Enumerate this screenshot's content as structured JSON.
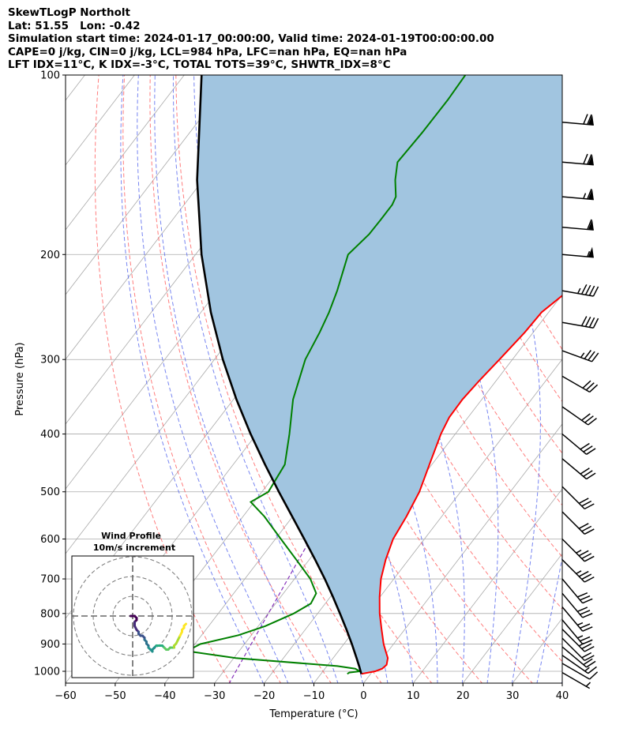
{
  "header": {
    "lines": [
      "SkewTLogP Northolt",
      "Lat: 51.55   Lon: -0.42",
      "Simulation start time: 2024-01-17_00:00:00, Valid time: 2024-01-19T00:00:00.00",
      "CAPE=0 j/kg, CIN=0 j/kg, LCL=984 hPa, LFC=nan hPa, EQ=nan hPa",
      "LFT IDX=11°C, K IDX=-3°C, TOTAL TOTS=39°C, SHWTR_IDX=8°C"
    ]
  },
  "colors": {
    "temperature": "#ff0000",
    "dewpoint": "#008000",
    "parcel": "#000000",
    "fill": "#a1c5e0",
    "dry_adiabat": "#ff6666",
    "moist_adiabat": "#5566ee",
    "mixing_ratio": "#8833bb",
    "isotherm": "#aaaaaa"
  },
  "chart_data": [
    {
      "type": "line",
      "subtype": "skew-t log-p",
      "xlabel": "Temperature (°C)",
      "ylabel": "Pressure (hPa)",
      "xlim": [
        -60,
        40
      ],
      "ylim": [
        1050,
        100
      ],
      "y_scale": "log",
      "grid": true,
      "x_ticks": [
        -60,
        -50,
        -40,
        -30,
        -20,
        -10,
        0,
        10,
        20,
        30,
        40
      ],
      "x_tick_labels": [
        "−60",
        "−50",
        "−40",
        "−30",
        "−20",
        "−10",
        "0",
        "10",
        "20",
        "30",
        "40"
      ],
      "y_ticks": [
        1000,
        900,
        800,
        700,
        600,
        500,
        400,
        300,
        200,
        100
      ],
      "y_tick_labels": [
        "1000",
        "900",
        "800",
        "700",
        "600",
        "500",
        "400",
        "300",
        "200",
        "100"
      ],
      "series": [
        {
          "name": "temperature",
          "pressure": [
            1010,
            1000,
            990,
            975,
            950,
            925,
            900,
            850,
            800,
            750,
            700,
            650,
            600,
            550,
            500,
            450,
            400,
            375,
            350,
            325,
            300,
            270,
            250,
            235,
            215,
            200,
            185,
            165,
            155,
            145,
            130,
            115,
            100
          ],
          "temperature": [
            -1.9,
            0.5,
            1.5,
            1.8,
            1.0,
            -0.5,
            -2.0,
            -4.7,
            -7.5,
            -10.1,
            -12.6,
            -14.6,
            -16.3,
            -17.1,
            -18.3,
            -20.5,
            -22.9,
            -23.8,
            -23.9,
            -23.4,
            -22.6,
            -21.7,
            -21.4,
            -19.9,
            -17.3,
            -15.5,
            -13.9,
            -13.9,
            -12.3,
            -10.6,
            -9.1,
            -5.9,
            -3.3
          ]
        },
        {
          "name": "dewpoint",
          "pressure": [
            1010,
            1005,
            1000,
            990,
            980,
            950,
            925,
            900,
            870,
            840,
            800,
            770,
            740,
            700,
            650,
            600,
            550,
            520,
            500,
            450,
            400,
            350,
            300,
            270,
            250,
            230,
            200,
            185,
            175,
            165,
            160,
            150,
            140,
            125,
            110,
            100
          ],
          "temperature": [
            -4.7,
            -4.5,
            -2.6,
            -3.9,
            -7.9,
            -29.6,
            -40.5,
            -38.9,
            -32.6,
            -28.6,
            -24.8,
            -22.9,
            -23.4,
            -26.8,
            -32.6,
            -38.9,
            -45.7,
            -50.7,
            -48.7,
            -49.6,
            -53.4,
            -58.0,
            -61.7,
            -63.0,
            -64.2,
            -65.9,
            -69.3,
            -68.2,
            -68.1,
            -68.1,
            -68.6,
            -71.3,
            -73.6,
            -73.2,
            -73.1,
            -73.4
          ]
        },
        {
          "name": "parcel",
          "pressure": [
            1010,
            984,
            950,
            900,
            850,
            800,
            750,
            700,
            650,
            600,
            550,
            500,
            450,
            400,
            350,
            300,
            250,
            200,
            150,
            100
          ],
          "temperature": [
            -1.9,
            -3.3,
            -5.3,
            -8.4,
            -11.8,
            -15.5,
            -19.5,
            -23.9,
            -28.8,
            -34.2,
            -40.1,
            -46.6,
            -53.6,
            -61.2,
            -69.4,
            -78.3,
            -88.0,
            -98.8,
            -111.2,
            -126.5
          ]
        }
      ]
    },
    {
      "type": "line",
      "subtype": "wind barbs",
      "pressure": [
        1005,
        970,
        940,
        910,
        880,
        850,
        820,
        780,
        740,
        700,
        650,
        600,
        540,
        490,
        440,
        400,
        360,
        320,
        290,
        260,
        230,
        200,
        180,
        160,
        140,
        120
      ],
      "wind_speed_kt": [
        5,
        10,
        15,
        20,
        20,
        25,
        25,
        25,
        30,
        30,
        35,
        35,
        30,
        30,
        30,
        30,
        30,
        30,
        35,
        40,
        45,
        55,
        60,
        65,
        70,
        70
      ],
      "wind_dir_deg": [
        300,
        300,
        305,
        310,
        315,
        315,
        320,
        320,
        320,
        320,
        315,
        315,
        315,
        315,
        310,
        310,
        305,
        300,
        290,
        280,
        280,
        275,
        275,
        275,
        275,
        275
      ]
    },
    {
      "type": "scatter",
      "subtype": "hodograph",
      "title": "Wind Profile",
      "subtitle": "10m/s increment",
      "u": [
        -1,
        0,
        1,
        2,
        2,
        1,
        1,
        1,
        2,
        3,
        3,
        4,
        5,
        6,
        6,
        7,
        7,
        8,
        8,
        9,
        10,
        10,
        11,
        12,
        13,
        14,
        15,
        16,
        17,
        18,
        19,
        20,
        21,
        21,
        22,
        23,
        24,
        25,
        25,
        26,
        26,
        27
      ],
      "v": [
        0,
        0,
        0,
        -1,
        -2,
        -3,
        -4,
        -5,
        -7,
        -8,
        -9,
        -10,
        -10,
        -11,
        -12,
        -13,
        -14,
        -15,
        -16,
        -17,
        -18,
        -17,
        -16,
        -15,
        -15,
        -15,
        -15,
        -16,
        -17,
        -17,
        -16,
        -16,
        -16,
        -15,
        -14,
        -12,
        -10,
        -8,
        -7,
        -6,
        -5,
        -4
      ]
    }
  ]
}
